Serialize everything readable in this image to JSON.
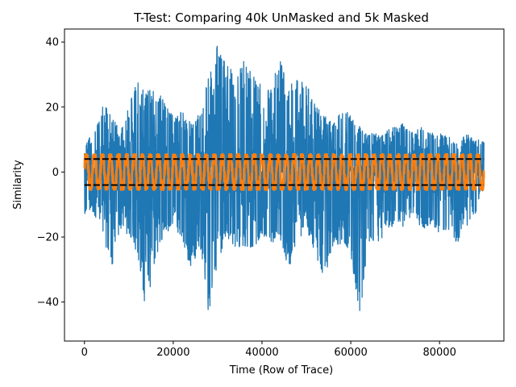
{
  "chart_data": {
    "type": "line",
    "title": "T-Test: Comparing 40k UnMasked and 5k Masked",
    "xlabel": "Time (Row of Trace)",
    "ylabel": "Similarity",
    "xlim": [
      -4500,
      94500
    ],
    "ylim": [
      -52,
      44
    ],
    "xticks": [
      0,
      20000,
      40000,
      60000,
      80000
    ],
    "xtick_labels": [
      "0",
      "20000",
      "40000",
      "60000",
      "80000"
    ],
    "yticks": [
      -40,
      -20,
      0,
      20,
      40
    ],
    "ytick_labels": [
      "−40",
      "−20",
      "0",
      "20",
      "40"
    ],
    "grid": false,
    "series": [
      {
        "color": "#1f77b4",
        "style": "solid",
        "x_range": [
          0,
          90000
        ],
        "envelope": {
          "x": [
            0,
            2000,
            4000,
            6000,
            8000,
            10000,
            12000,
            14000,
            16000,
            18000,
            20000,
            22000,
            24000,
            26000,
            28000,
            30000,
            32000,
            34000,
            36000,
            38000,
            40000,
            42000,
            44000,
            46000,
            48000,
            50000,
            52000,
            54000,
            56000,
            58000,
            60000,
            62000,
            64000,
            66000,
            68000,
            70000,
            72000,
            74000,
            76000,
            78000,
            80000,
            82000,
            84000,
            86000,
            88000,
            90000
          ],
          "upper": [
            10,
            12,
            20,
            20,
            12,
            20,
            30,
            25,
            26,
            22,
            17,
            19,
            15,
            18,
            30,
            40,
            34,
            30,
            35,
            31,
            28,
            26,
            35,
            26,
            30,
            27,
            21,
            18,
            15,
            19,
            18,
            14,
            12,
            12,
            13,
            14,
            15,
            12,
            14,
            12,
            12,
            11,
            9,
            12,
            10,
            10
          ],
          "lower": [
            -13,
            -13,
            -18,
            -31,
            -18,
            -20,
            -26,
            -47,
            -28,
            -20,
            -16,
            -21,
            -30,
            -24,
            -45,
            -28,
            -20,
            -23,
            -23,
            -24,
            -19,
            -22,
            -20,
            -30,
            -22,
            -18,
            -25,
            -33,
            -23,
            -22,
            -25,
            -45,
            -22,
            -23,
            -18,
            -16,
            -17,
            -14,
            -18,
            -16,
            -19,
            -18,
            -22,
            -17,
            -13,
            -5
          ]
        }
      },
      {
        "color": "#ff7f0e",
        "style": "solid",
        "x_range": [
          0,
          90000
        ],
        "envelope": {
          "upper": 5.5,
          "lower": -5.5
        }
      },
      {
        "color": "#000000",
        "style": "dashed",
        "x": [
          0,
          90000
        ],
        "y": [
          4,
          4
        ]
      },
      {
        "color": "#000000",
        "style": "dashed",
        "x": [
          0,
          90000
        ],
        "y": [
          -4,
          -4
        ]
      }
    ]
  }
}
